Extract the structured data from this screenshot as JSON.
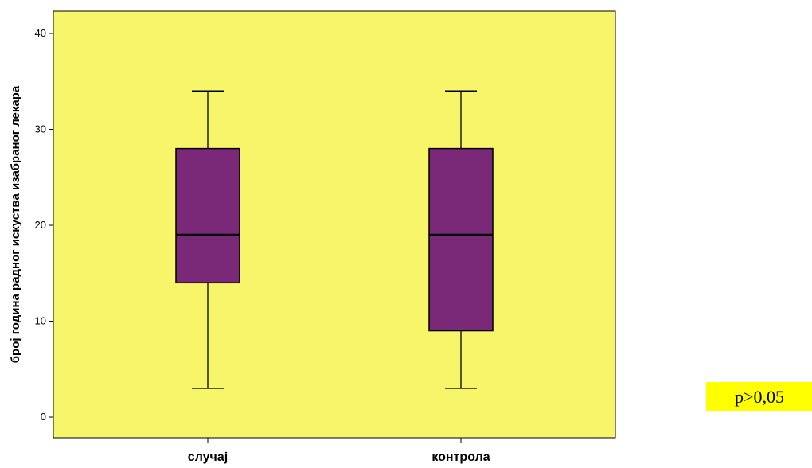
{
  "chart_data": {
    "type": "box",
    "title": "",
    "xlabel": "",
    "ylabel": "број година радног искуства изабраног лекара",
    "ylim": [
      0,
      42
    ],
    "yticks": [
      0,
      10,
      20,
      30,
      40
    ],
    "grid": false,
    "categories": [
      "случај",
      "контрола"
    ],
    "boxes": [
      {
        "category": "случај",
        "min": 3,
        "q1": 14,
        "median": 19,
        "q3": 28,
        "max": 34
      },
      {
        "category": "контрола",
        "min": 3,
        "q1": 9,
        "median": 19,
        "q3": 28,
        "max": 34
      }
    ],
    "colors": {
      "plot_background": "#f7f56a",
      "box_fill": "#7a2878",
      "lines": "#000000"
    }
  },
  "annotation": {
    "pvalue_text": "p>0,05",
    "background": "#ffff00"
  }
}
